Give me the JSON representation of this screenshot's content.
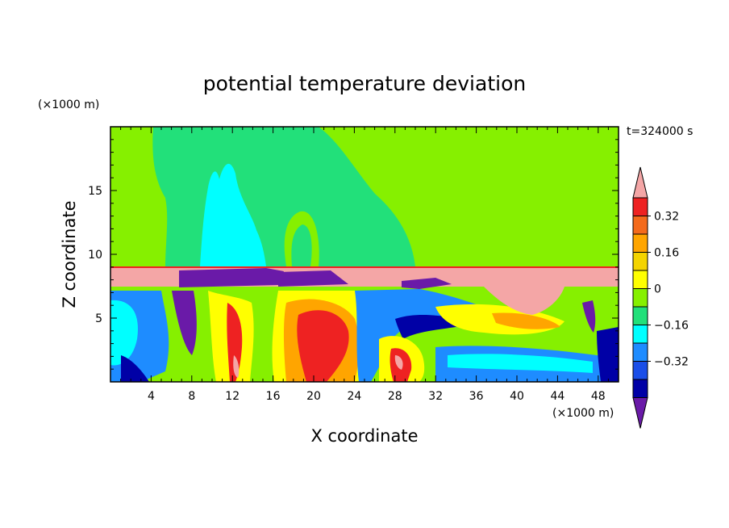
{
  "chart_data": {
    "type": "heatmap",
    "title": "potential temperature deviation",
    "xlabel": "X coordinate",
    "ylabel": "Z coordinate",
    "x_unit": "(×1000 m)",
    "y_unit": "(×1000 m)",
    "time_label": "t=324000 s",
    "xlim": [
      0,
      50
    ],
    "ylim": [
      0,
      20
    ],
    "x_ticks": [
      "4",
      "8",
      "12",
      "16",
      "20",
      "24",
      "28",
      "32",
      "36",
      "40",
      "44",
      "48"
    ],
    "y_ticks": [
      "5",
      "10",
      "15"
    ],
    "colorbar": {
      "labels": [
        "0.32",
        "0.16",
        "0",
        "-0.16",
        "-0.32"
      ],
      "colors": [
        "#f4a6a6",
        "#ee2222",
        "#f46a1c",
        "#ffa500",
        "#f4d400",
        "#ffff00",
        "#86f000",
        "#22e07a",
        "#00ffff",
        "#1e8cff",
        "#1a4ee8",
        "#0000a6",
        "#6a1aa8"
      ],
      "extend": "both"
    },
    "field_description_levels": {
      "upper_background": 0,
      "upper_plume": -0.08,
      "upper_core": -0.14,
      "inversion_band": 0.4,
      "inversion_cap": -0.42
    }
  }
}
